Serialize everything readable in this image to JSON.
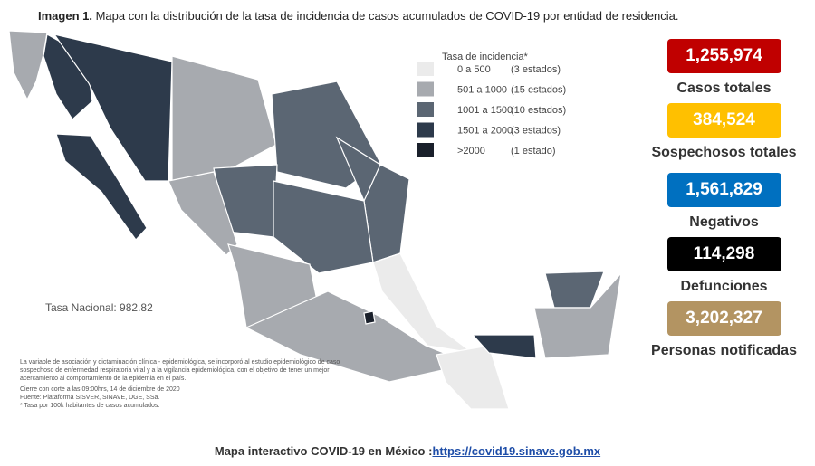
{
  "title": {
    "label": "Imagen 1.",
    "text": "Mapa con la distribución de la tasa de incidencia de casos acumulados de COVID-19 por entidad de residencia."
  },
  "legend": {
    "title": "Tasa de incidencia*",
    "items": [
      {
        "range": "0 a 500",
        "count": "(3 estados)",
        "color": "#ebebeb"
      },
      {
        "range": "501 a 1000",
        "count": "(15 estados)",
        "color": "#a7aaaf"
      },
      {
        "range": "1001 a 1500",
        "count": "(10 estados)",
        "color": "#5b6673"
      },
      {
        "range": "1501 a 2000",
        "count": "(3 estados)",
        "color": "#2d3a4b"
      },
      {
        "range": ">2000",
        "count": "(1 estado)",
        "color": "#1a202b"
      }
    ]
  },
  "national_rate": "Tasa Nacional: 982.82",
  "notes": [
    "La variable de asociación y dictaminación clínica - epidemiológica, se incorporó al estudio epidemiológico de caso sospechoso de enfermedad respiratoria viral y a la vigilancia epidemiológica, con el objetivo de tener un mejor acercamiento al comportamiento de la epidemia en el país.",
    "Cierre con corte a las 09:00hrs, 14 de diciembre de 2020",
    "Fuente: Plataforma SISVER, SINAVE, DGE, SSa.",
    "* Tasa por 100k habitantes de casos acumulados."
  ],
  "stats": [
    {
      "value": "1,255,974",
      "label": "Casos totales",
      "color": "#c00000"
    },
    {
      "value": "384,524",
      "label": "Sospechosos totales",
      "color": "#ffc000"
    },
    {
      "value": "1,561,829",
      "label": "Negativos",
      "color": "#0070c0"
    },
    {
      "value": "114,298",
      "label": "Defunciones",
      "color": "#000000"
    },
    {
      "value": "3,202,327",
      "label": "Personas notificadas",
      "color": "#b39462"
    }
  ],
  "footer": {
    "text": "Mapa interactivo COVID-19 en México :",
    "link": "https://covid19.sinave.gob.mx"
  }
}
